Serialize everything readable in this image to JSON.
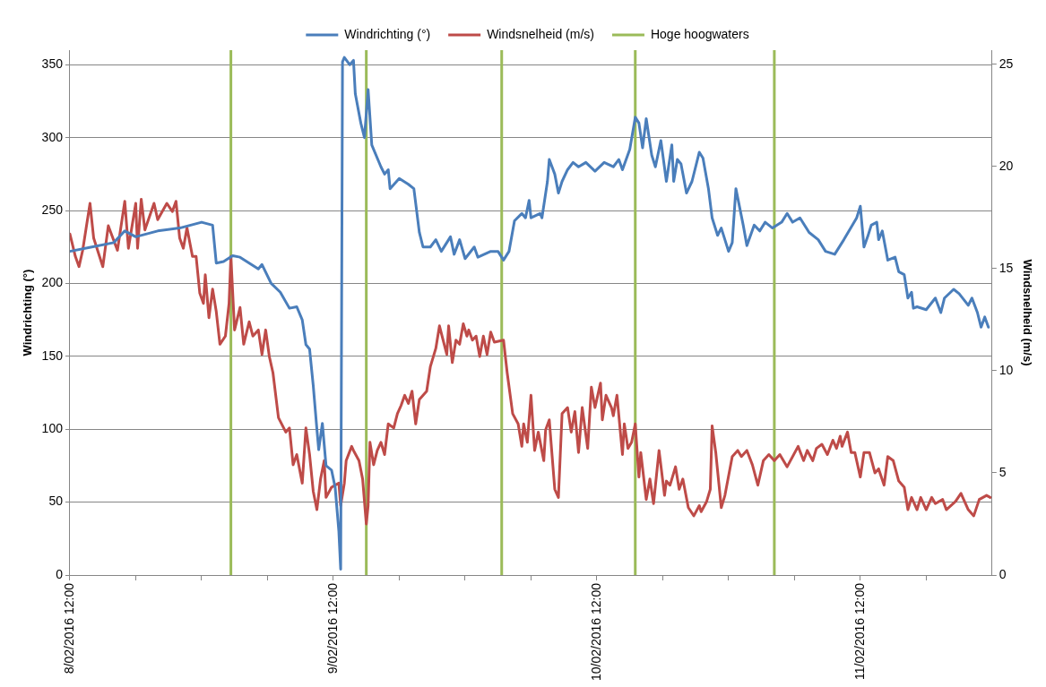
{
  "chart_data": {
    "type": "line",
    "ylabel": "Windrichting (°)",
    "y2label": "Windsnelheid (m/s)",
    "legend": "top",
    "grid": "y",
    "line_style": "solid",
    "xlim": [
      "2016-02-08T12:00",
      "2016-02-12T00:00"
    ],
    "xticks": [
      {
        "value": "2016-02-08T12:00",
        "label": "8/02/2016 12:00"
      },
      {
        "value": "2016-02-08T18:00",
        "label": null
      },
      {
        "value": "2016-02-09T00:00",
        "label": null
      },
      {
        "value": "2016-02-09T06:00",
        "label": null
      },
      {
        "value": "2016-02-09T12:00",
        "label": "9/02/2016 12:00"
      },
      {
        "value": "2016-02-09T18:00",
        "label": null
      },
      {
        "value": "2016-02-10T00:00",
        "label": null
      },
      {
        "value": "2016-02-10T06:00",
        "label": null
      },
      {
        "value": "2016-02-10T12:00",
        "label": "10/02/2016 12:00"
      },
      {
        "value": "2016-02-10T18:00",
        "label": null
      },
      {
        "value": "2016-02-11T00:00",
        "label": null
      },
      {
        "value": "2016-02-11T06:00",
        "label": null
      },
      {
        "value": "2016-02-11T12:00",
        "label": "11/02/2016 12:00"
      },
      {
        "value": "2016-02-11T18:00",
        "label": null
      }
    ],
    "ylim": [
      0,
      360
    ],
    "yticks": [
      0,
      50,
      100,
      150,
      200,
      250,
      300,
      350
    ],
    "y2lim": [
      0,
      25.7
    ],
    "y2ticks": [
      0,
      5,
      10,
      15,
      20,
      25
    ],
    "series": [
      {
        "name": "Windrichting (°)",
        "color": "#4a7ebb",
        "x": [
          "2016-02-08T12:00",
          "2016-02-08T14:00",
          "2016-02-08T16:00",
          "2016-02-08T17:00",
          "2016-02-08T18:00",
          "2016-02-08T20:00",
          "2016-02-08T22:00",
          "2016-02-09T00:00",
          "2016-02-09T01:00",
          "2016-02-09T01:20",
          "2016-02-09T02:00",
          "2016-02-09T02:50",
          "2016-02-09T03:30",
          "2016-02-09T04:20",
          "2016-02-09T05:10",
          "2016-02-09T05:30",
          "2016-02-09T06:20",
          "2016-02-09T07:10",
          "2016-02-09T08:00",
          "2016-02-09T08:40",
          "2016-02-09T09:10",
          "2016-02-09T09:30",
          "2016-02-09T09:50",
          "2016-02-09T10:10",
          "2016-02-09T10:30",
          "2016-02-09T10:40",
          "2016-02-09T11:00",
          "2016-02-09T11:20",
          "2016-02-09T11:50",
          "2016-02-09T12:10",
          "2016-02-09T12:30",
          "2016-02-09T12:40",
          "2016-02-09T12:50",
          "2016-02-09T13:00",
          "2016-02-09T13:30",
          "2016-02-09T13:50",
          "2016-02-09T14:00",
          "2016-02-09T14:30",
          "2016-02-09T14:50",
          "2016-02-09T15:10",
          "2016-02-09T15:30",
          "2016-02-09T16:20",
          "2016-02-09T16:40",
          "2016-02-09T17:00",
          "2016-02-09T17:10",
          "2016-02-09T18:00",
          "2016-02-09T18:50",
          "2016-02-09T19:20",
          "2016-02-09T19:50",
          "2016-02-09T20:10",
          "2016-02-09T20:50",
          "2016-02-09T21:20",
          "2016-02-09T21:50",
          "2016-02-09T22:40",
          "2016-02-09T23:00",
          "2016-02-09T23:30",
          "2016-02-10T00:00",
          "2016-02-10T00:50",
          "2016-02-10T01:10",
          "2016-02-10T02:20",
          "2016-02-10T03:00",
          "2016-02-10T03:30",
          "2016-02-10T04:00",
          "2016-02-10T04:30",
          "2016-02-10T05:10",
          "2016-02-10T05:30",
          "2016-02-10T05:50",
          "2016-02-10T06:00",
          "2016-02-10T06:50",
          "2016-02-10T07:00",
          "2016-02-10T07:30",
          "2016-02-10T07:40",
          "2016-02-10T08:10",
          "2016-02-10T08:30",
          "2016-02-10T08:50",
          "2016-02-10T09:20",
          "2016-02-10T09:50",
          "2016-02-10T10:20",
          "2016-02-10T11:00",
          "2016-02-10T11:50",
          "2016-02-10T12:40",
          "2016-02-10T13:30",
          "2016-02-10T14:00",
          "2016-02-10T14:20",
          "2016-02-10T15:00",
          "2016-02-10T15:30",
          "2016-02-10T15:50",
          "2016-02-10T16:10",
          "2016-02-10T16:30",
          "2016-02-10T17:00",
          "2016-02-10T17:20",
          "2016-02-10T17:50",
          "2016-02-10T18:20",
          "2016-02-10T18:50",
          "2016-02-10T19:00",
          "2016-02-10T19:20",
          "2016-02-10T19:40",
          "2016-02-10T20:10",
          "2016-02-10T20:40",
          "2016-02-10T21:20",
          "2016-02-10T21:40",
          "2016-02-10T22:10",
          "2016-02-10T22:30",
          "2016-02-10T23:00",
          "2016-02-10T23:20",
          "2016-02-11T00:00",
          "2016-02-11T00:20",
          "2016-02-11T00:40",
          "2016-02-11T01:20",
          "2016-02-11T01:40",
          "2016-02-11T02:20",
          "2016-02-11T02:50",
          "2016-02-11T03:20",
          "2016-02-11T04:00",
          "2016-02-11T04:50",
          "2016-02-11T05:20",
          "2016-02-11T05:50",
          "2016-02-11T06:30",
          "2016-02-11T07:20",
          "2016-02-11T08:10",
          "2016-02-11T08:50",
          "2016-02-11T09:40",
          "2016-02-11T10:30",
          "2016-02-11T11:40",
          "2016-02-11T12:00",
          "2016-02-11T12:20",
          "2016-02-11T12:40",
          "2016-02-11T13:00",
          "2016-02-11T13:30",
          "2016-02-11T13:40",
          "2016-02-11T14:00",
          "2016-02-11T14:30",
          "2016-02-11T15:10",
          "2016-02-11T15:30",
          "2016-02-11T16:00",
          "2016-02-11T16:20",
          "2016-02-11T16:40",
          "2016-02-11T16:50",
          "2016-02-11T17:10",
          "2016-02-11T18:00",
          "2016-02-11T18:50",
          "2016-02-11T19:20",
          "2016-02-11T19:40",
          "2016-02-11T20:30",
          "2016-02-11T21:00",
          "2016-02-11T21:50",
          "2016-02-11T22:10",
          "2016-02-11T22:40",
          "2016-02-11T23:00",
          "2016-02-11T23:20",
          "2016-02-11T23:40"
        ],
        "values": [
          222,
          225,
          228,
          236,
          232,
          236,
          238,
          242,
          240,
          214,
          215,
          219,
          218,
          214,
          210,
          213,
          200,
          194,
          183,
          184,
          175,
          158,
          155,
          130,
          100,
          86,
          104,
          75,
          72,
          60,
          30,
          4,
          352,
          355,
          350,
          353,
          330,
          310,
          300,
          333,
          295,
          280,
          275,
          278,
          265,
          272,
          268,
          265,
          235,
          225,
          225,
          230,
          222,
          232,
          220,
          230,
          217,
          225,
          218,
          222,
          222,
          216,
          222,
          243,
          248,
          245,
          257,
          245,
          248,
          245,
          270,
          285,
          275,
          262,
          270,
          278,
          283,
          280,
          283,
          277,
          283,
          280,
          285,
          278,
          292,
          314,
          310,
          293,
          313,
          288,
          280,
          298,
          270,
          295,
          270,
          285,
          282,
          262,
          270,
          290,
          286,
          265,
          245,
          233,
          238,
          222,
          228,
          265,
          240,
          226,
          240,
          236,
          242,
          238,
          242,
          248,
          242,
          245,
          235,
          230,
          222,
          220,
          230,
          245,
          253,
          225,
          232,
          240,
          242,
          230,
          236,
          216,
          218,
          208,
          206,
          190,
          194,
          183,
          184,
          182,
          190,
          180,
          190,
          196,
          193,
          185,
          190,
          180,
          170,
          177,
          170
        ]
      },
      {
        "name": "Windsnelheid (m/s)",
        "color": "#be4b48",
        "axis": "y2",
        "x": [
          "2016-02-08T12:00",
          "2016-02-08T12:30",
          "2016-02-08T12:50",
          "2016-02-08T13:10",
          "2016-02-08T13:50",
          "2016-02-08T14:10",
          "2016-02-08T15:00",
          "2016-02-08T15:30",
          "2016-02-08T16:20",
          "2016-02-08T17:00",
          "2016-02-08T17:20",
          "2016-02-08T18:00",
          "2016-02-08T18:10",
          "2016-02-08T18:30",
          "2016-02-08T18:50",
          "2016-02-08T19:40",
          "2016-02-08T20:00",
          "2016-02-08T20:50",
          "2016-02-08T21:20",
          "2016-02-08T21:40",
          "2016-02-08T22:00",
          "2016-02-08T22:20",
          "2016-02-08T22:40",
          "2016-02-08T23:10",
          "2016-02-08T23:30",
          "2016-02-08T23:50",
          "2016-02-09T00:10",
          "2016-02-09T00:20",
          "2016-02-09T00:40",
          "2016-02-09T01:00",
          "2016-02-09T01:20",
          "2016-02-09T01:40",
          "2016-02-09T02:10",
          "2016-02-09T02:30",
          "2016-02-09T02:40",
          "2016-02-09T03:00",
          "2016-02-09T03:30",
          "2016-02-09T03:50",
          "2016-02-09T04:20",
          "2016-02-09T04:40",
          "2016-02-09T05:10",
          "2016-02-09T05:30",
          "2016-02-09T05:50",
          "2016-02-09T06:10",
          "2016-02-09T06:30",
          "2016-02-09T07:00",
          "2016-02-09T07:40",
          "2016-02-09T08:00",
          "2016-02-09T08:20",
          "2016-02-09T08:40",
          "2016-02-09T09:10",
          "2016-02-09T09:30",
          "2016-02-09T09:50",
          "2016-02-09T10:10",
          "2016-02-09T10:30",
          "2016-02-09T10:50",
          "2016-02-09T11:10",
          "2016-02-09T11:20",
          "2016-02-09T11:50",
          "2016-02-09T12:30",
          "2016-02-09T12:40",
          "2016-02-09T13:00",
          "2016-02-09T13:10",
          "2016-02-09T13:40",
          "2016-02-09T13:50",
          "2016-02-09T14:20",
          "2016-02-09T14:40",
          "2016-02-09T15:00",
          "2016-02-09T15:10",
          "2016-02-09T15:20",
          "2016-02-09T15:40",
          "2016-02-09T16:00",
          "2016-02-09T16:20",
          "2016-02-09T16:40",
          "2016-02-09T17:00",
          "2016-02-09T17:30",
          "2016-02-09T17:50",
          "2016-02-09T18:10",
          "2016-02-09T18:30",
          "2016-02-09T18:50",
          "2016-02-09T19:10",
          "2016-02-09T19:30",
          "2016-02-09T19:50",
          "2016-02-09T20:30",
          "2016-02-09T20:50",
          "2016-02-09T21:20",
          "2016-02-09T21:40",
          "2016-02-09T22:00",
          "2016-02-09T22:20",
          "2016-02-09T22:30",
          "2016-02-09T22:50",
          "2016-02-09T23:10",
          "2016-02-09T23:30",
          "2016-02-09T23:50",
          "2016-02-10T00:10",
          "2016-02-10T00:20",
          "2016-02-10T00:40",
          "2016-02-10T01:00",
          "2016-02-10T01:20",
          "2016-02-10T01:40",
          "2016-02-10T02:00",
          "2016-02-10T02:20",
          "2016-02-10T02:40",
          "2016-02-10T03:30",
          "2016-02-10T03:50",
          "2016-02-10T04:20",
          "2016-02-10T04:50",
          "2016-02-10T05:10",
          "2016-02-10T05:20",
          "2016-02-10T05:40",
          "2016-02-10T06:00",
          "2016-02-10T06:20",
          "2016-02-10T06:40",
          "2016-02-10T07:10",
          "2016-02-10T07:20",
          "2016-02-10T07:40",
          "2016-02-10T08:10",
          "2016-02-10T08:30",
          "2016-02-10T08:50",
          "2016-02-10T09:20",
          "2016-02-10T09:40",
          "2016-02-10T10:00",
          "2016-02-10T10:20",
          "2016-02-10T10:40",
          "2016-02-10T11:10",
          "2016-02-10T11:30",
          "2016-02-10T11:50",
          "2016-02-10T12:20",
          "2016-02-10T12:30",
          "2016-02-10T12:50",
          "2016-02-10T13:20",
          "2016-02-10T13:30",
          "2016-02-10T13:50",
          "2016-02-10T14:20",
          "2016-02-10T14:30",
          "2016-02-10T14:50",
          "2016-02-10T15:10",
          "2016-02-10T15:30",
          "2016-02-10T15:50",
          "2016-02-10T16:00",
          "2016-02-10T16:30",
          "2016-02-10T16:50",
          "2016-02-10T17:10",
          "2016-02-10T17:40",
          "2016-02-10T18:10",
          "2016-02-10T18:20",
          "2016-02-10T18:40",
          "2016-02-10T19:10",
          "2016-02-10T19:30",
          "2016-02-10T19:50",
          "2016-02-10T20:20",
          "2016-02-10T20:50",
          "2016-02-10T21:20",
          "2016-02-10T21:30",
          "2016-02-10T22:00",
          "2016-02-10T22:20",
          "2016-02-10T22:30",
          "2016-02-10T22:50",
          "2016-02-10T23:20",
          "2016-02-10T23:40",
          "2016-02-11T00:20",
          "2016-02-11T00:50",
          "2016-02-11T01:10",
          "2016-02-11T01:40",
          "2016-02-11T02:10",
          "2016-02-11T02:40",
          "2016-02-11T03:10",
          "2016-02-11T03:40",
          "2016-02-11T04:10",
          "2016-02-11T04:40",
          "2016-02-11T05:20",
          "2016-02-11T06:20",
          "2016-02-11T06:50",
          "2016-02-11T07:10",
          "2016-02-11T07:40",
          "2016-02-11T08:00",
          "2016-02-11T08:30",
          "2016-02-11T09:00",
          "2016-02-11T09:30",
          "2016-02-11T09:50",
          "2016-02-11T10:10",
          "2016-02-11T10:20",
          "2016-02-11T10:50",
          "2016-02-11T11:10",
          "2016-02-11T11:30",
          "2016-02-11T12:00",
          "2016-02-11T12:20",
          "2016-02-11T12:50",
          "2016-02-11T13:20",
          "2016-02-11T13:40",
          "2016-02-11T14:10",
          "2016-02-11T14:30",
          "2016-02-11T15:00",
          "2016-02-11T15:30",
          "2016-02-11T16:00",
          "2016-02-11T16:20",
          "2016-02-11T16:40",
          "2016-02-11T17:10",
          "2016-02-11T17:30",
          "2016-02-11T18:00",
          "2016-02-11T18:30",
          "2016-02-11T18:50",
          "2016-02-11T19:30",
          "2016-02-11T19:50",
          "2016-02-11T20:40",
          "2016-02-11T21:10",
          "2016-02-11T21:50",
          "2016-02-11T22:20",
          "2016-02-11T22:50",
          "2016-02-11T23:30",
          "2016-02-11T23:50"
        ],
        "values": [
          16.7,
          15.6,
          15.1,
          15.9,
          18.2,
          16.5,
          15.1,
          17.1,
          15.9,
          18.3,
          16.0,
          18.2,
          16.0,
          18.4,
          16.9,
          18.2,
          17.4,
          18.2,
          17.8,
          18.3,
          16.5,
          16.0,
          17.0,
          15.6,
          15.6,
          13.8,
          13.3,
          14.7,
          12.6,
          14.0,
          12.9,
          11.3,
          11.7,
          13.3,
          15.6,
          12.0,
          13.1,
          11.3,
          12.4,
          11.7,
          12.0,
          10.8,
          12.0,
          10.7,
          9.9,
          7.7,
          7.0,
          7.2,
          5.4,
          5.9,
          4.5,
          7.2,
          5.9,
          4.1,
          3.2,
          4.7,
          5.6,
          3.8,
          4.3,
          4.5,
          3.4,
          4.5,
          5.6,
          6.3,
          6.1,
          5.6,
          4.7,
          2.5,
          3.4,
          6.5,
          5.4,
          6.1,
          6.5,
          5.9,
          7.4,
          7.2,
          7.9,
          8.3,
          8.8,
          8.4,
          9.0,
          7.4,
          8.6,
          9.0,
          10.2,
          11.1,
          12.2,
          11.5,
          10.8,
          12.2,
          10.4,
          11.5,
          11.3,
          12.3,
          11.7,
          12.0,
          11.5,
          11.7,
          10.7,
          11.7,
          10.8,
          11.9,
          11.4,
          11.5,
          9.9,
          7.9,
          7.4,
          6.3,
          7.4,
          6.5,
          8.8,
          6.1,
          7.0,
          5.6,
          7.1,
          7.6,
          4.2,
          3.8,
          7.9,
          8.2,
          7.0,
          8.0,
          6.0,
          8.2,
          6.2,
          9.2,
          8.2,
          9.4,
          7.6,
          8.8,
          8.2,
          7.8,
          8.8,
          5.9,
          7.4,
          6.2,
          6.5,
          7.4,
          4.8,
          6.0,
          3.7,
          4.7,
          3.5,
          6.1,
          3.9,
          4.6,
          4.4,
          5.3,
          4.2,
          4.7,
          3.3,
          2.9,
          3.4,
          3.1,
          3.6,
          4.2,
          7.3,
          6.0,
          3.3,
          3.9,
          5.8,
          6.1,
          5.8,
          6.1,
          5.4,
          4.4,
          5.6,
          5.9,
          5.6,
          5.9,
          5.3,
          6.3,
          5.6,
          6.1,
          5.6,
          6.2,
          6.4,
          5.9,
          6.6,
          6.2,
          6.8,
          6.3,
          7.0,
          6.0,
          6.0,
          4.8,
          6.0,
          6.0,
          5.0,
          5.2,
          4.4,
          5.8,
          5.6,
          4.6,
          4.3,
          3.2,
          3.8,
          3.2,
          3.8,
          3.2,
          3.8,
          3.5,
          3.7,
          3.2,
          3.6,
          4.0,
          3.2,
          2.9,
          3.7,
          3.9,
          3.8
        ]
      }
    ],
    "ref_lines": [
      {
        "axis": "x",
        "value": "2016-02-09T02:40",
        "label": "Hoge hoogwaters",
        "color": "#9bbb59"
      },
      {
        "axis": "x",
        "value": "2016-02-09T15:00",
        "color": "#9bbb59"
      },
      {
        "axis": "x",
        "value": "2016-02-10T03:20",
        "color": "#9bbb59"
      },
      {
        "axis": "x",
        "value": "2016-02-10T15:30",
        "color": "#9bbb59"
      },
      {
        "axis": "x",
        "value": "2016-02-11T04:10",
        "color": "#9bbb59"
      }
    ]
  }
}
